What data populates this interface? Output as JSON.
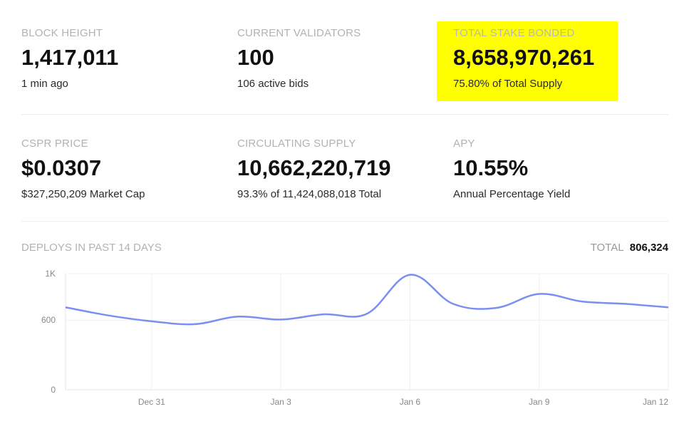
{
  "stats": {
    "block_height": {
      "label": "BLOCK HEIGHT",
      "value": "1,417,011",
      "sub": "1 min ago"
    },
    "current_validators": {
      "label": "CURRENT VALIDATORS",
      "value": "100",
      "sub": "106 active bids"
    },
    "total_stake_bonded": {
      "label": "TOTAL STAKE BONDED",
      "value": "8,658,970,261",
      "sub": "75.80% of Total Supply",
      "highlight_color": "#ffff00"
    },
    "cspr_price": {
      "label": "CSPR PRICE",
      "value": "$0.0307",
      "sub": "$327,250,209 Market Cap"
    },
    "circulating_supply": {
      "label": "CIRCULATING SUPPLY",
      "value": "10,662,220,719",
      "sub": "93.3% of 11,424,088,018 Total"
    },
    "apy": {
      "label": "APY",
      "value": "10.55%",
      "sub": "Annual Percentage Yield"
    }
  },
  "deploys": {
    "title": "DEPLOYS IN PAST 14 DAYS",
    "total_label": "TOTAL",
    "total_value": "806,324"
  },
  "chart_data": {
    "type": "line",
    "title": "DEPLOYS IN PAST 14 DAYS",
    "xlabel": "",
    "ylabel": "",
    "ylim": [
      0,
      1000
    ],
    "y_ticks": [
      "0",
      "600",
      "1K"
    ],
    "y_tick_values": [
      0,
      600,
      1000
    ],
    "x_tick_labels": [
      "Dec 31",
      "Jan 3",
      "Jan 6",
      "Jan 9",
      "Jan 12"
    ],
    "x_tick_indices": [
      2,
      5,
      8,
      11,
      14
    ],
    "x": [
      "Dec 29",
      "Dec 30",
      "Dec 31",
      "Jan 1",
      "Jan 2",
      "Jan 3",
      "Jan 4",
      "Jan 5",
      "Jan 6",
      "Jan 7",
      "Jan 8",
      "Jan 9",
      "Jan 10",
      "Jan 11",
      "Jan 12"
    ],
    "series": [
      {
        "name": "Deploys",
        "color": "#7b8ff0",
        "values": [
          710,
          640,
          590,
          565,
          630,
          605,
          650,
          655,
          990,
          740,
          705,
          825,
          760,
          740,
          710
        ]
      }
    ],
    "grid": true
  }
}
